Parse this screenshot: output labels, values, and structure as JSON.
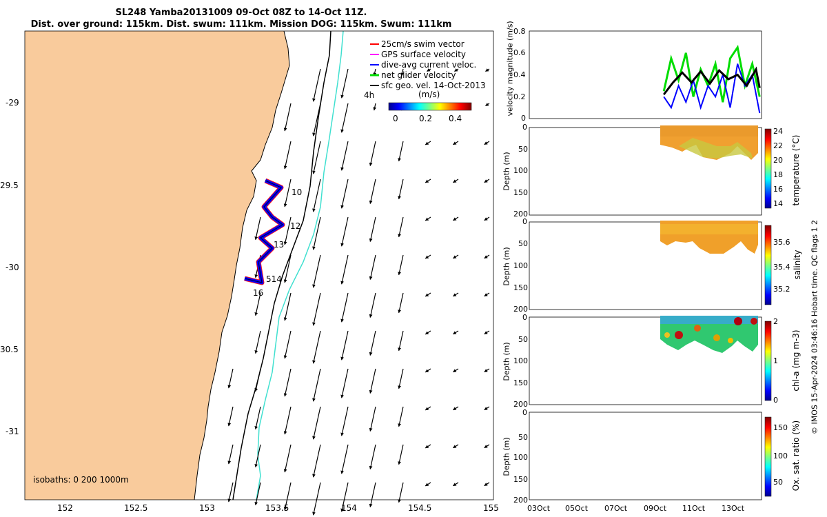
{
  "title": {
    "line1": "SL248 Yamba20131009 09-Oct 08Z to 14-Oct 11Z.",
    "line2": "Dist. over ground: 115km. Dist. swum: 111km. Mission DOG: 115km. Swum: 111km"
  },
  "map": {
    "lon_ticks": [
      "152",
      "152.5",
      "153",
      "153.5",
      "154",
      "154.5",
      "155"
    ],
    "lat_ticks": [
      "-29",
      "29.5",
      "-30",
      "30.5",
      "-31"
    ],
    "legend": [
      {
        "label": "25cm/s swim vector",
        "color": "#ff0000"
      },
      {
        "label": "GPS surface velocity",
        "color": "#ff00ff"
      },
      {
        "label": "dive-avg current veloc.",
        "color": "#0000ff"
      },
      {
        "label": "net glider velocity",
        "color": "#00dd00"
      },
      {
        "label": "sfc geo. vel. 14-Oct-2013",
        "color": "#000000"
      }
    ],
    "legend_note": "4h",
    "colorbar_label": "(m/s)",
    "colorbar_ticks": [
      "0",
      "0.2",
      "0.4"
    ],
    "isobaths_label": "isobaths: 0   200  1000m",
    "day_labels": [
      "10",
      "12",
      "13",
      "514",
      "16"
    ],
    "land_color": "#f9cb9c",
    "contour_1000_color": "#40e0d0"
  },
  "panels": {
    "velocity": {
      "ylabel": "velocity magnitude (m/s)",
      "yticks": [
        "0.8",
        "0.6",
        "0.4",
        "0.2",
        "0"
      ]
    },
    "temperature": {
      "ylabel": "Depth (m)",
      "yticks": [
        "0",
        "50",
        "100",
        "150",
        "200"
      ],
      "cbar_label": "temperature (°C)",
      "cbar_ticks": [
        "24",
        "22",
        "20",
        "18",
        "16",
        "14"
      ]
    },
    "salinity": {
      "ylabel": "Depth (m)",
      "yticks": [
        "0",
        "50",
        "100",
        "150",
        "200"
      ],
      "cbar_label": "salinity",
      "cbar_ticks": [
        "35.6",
        "35.4",
        "35.2"
      ]
    },
    "chla": {
      "ylabel": "Depth (m)",
      "yticks": [
        "0",
        "50",
        "100",
        "150",
        "200"
      ],
      "cbar_label": "chl-a (mg m-3)",
      "cbar_ticks": [
        "2",
        "1",
        "0"
      ]
    },
    "oxygen": {
      "ylabel": "Depth (m)",
      "yticks": [
        "0",
        "50",
        "100",
        "150",
        "200"
      ],
      "cbar_label": "Ox. sat. ratio (%)",
      "cbar_ticks": [
        "150",
        "100",
        "50"
      ]
    },
    "date_ticks": [
      "03Oct",
      "05Oct",
      "07Oct",
      "09Oct",
      "11Oct",
      "13Oct"
    ]
  },
  "credit": "© IMOS 15-Apr-2024 03:46:16 Hobart time. QC flags 1  2",
  "chart_data": [
    {
      "type": "map",
      "title": "SL248 Yamba20131009 09-Oct 08Z to 14-Oct 11Z.",
      "xlim": [
        151.7,
        155.0
      ],
      "ylim": [
        -31.4,
        -28.6
      ],
      "track_day_labels": [
        {
          "day": "10",
          "lon": 153.57,
          "lat": -29.54
        },
        {
          "day": "12",
          "lon": 153.57,
          "lat": -29.78
        },
        {
          "day": "13",
          "lon": 153.48,
          "lat": -29.89
        },
        {
          "day": "514",
          "lon": 153.45,
          "lat": -30.08
        },
        {
          "day": "16",
          "lon": 153.33,
          "lat": -30.16
        }
      ]
    },
    {
      "type": "line",
      "ylabel": "velocity magnitude (m/s)",
      "ylim": [
        0,
        0.8
      ],
      "series": [
        {
          "name": "net glider velocity",
          "x_days": [
            9.3,
            9.7,
            10.1,
            10.5,
            10.9,
            11.3,
            11.7,
            12.1,
            12.5,
            12.9,
            13.3,
            13.7,
            14.1,
            14.5
          ],
          "values": [
            0.25,
            0.55,
            0.35,
            0.6,
            0.2,
            0.45,
            0.3,
            0.5,
            0.15,
            0.55,
            0.65,
            0.3,
            0.5,
            0.2
          ]
        },
        {
          "name": "dive-avg current veloc.",
          "x_days": [
            9.3,
            9.7,
            10.1,
            10.5,
            10.9,
            11.3,
            11.7,
            12.1,
            12.5,
            12.9,
            13.3,
            13.7,
            14.1,
            14.5
          ],
          "values": [
            0.2,
            0.1,
            0.3,
            0.15,
            0.35,
            0.1,
            0.3,
            0.2,
            0.4,
            0.1,
            0.5,
            0.3,
            0.4,
            0.05
          ]
        },
        {
          "name": "sfc geo. vel.",
          "x_days": [
            9.3,
            9.8,
            10.3,
            10.8,
            11.3,
            11.8,
            12.3,
            12.8,
            13.3,
            13.8,
            14.3,
            14.5
          ],
          "values": [
            0.22,
            0.33,
            0.42,
            0.33,
            0.43,
            0.32,
            0.44,
            0.36,
            0.4,
            0.3,
            0.45,
            0.28
          ]
        }
      ]
    }
  ]
}
